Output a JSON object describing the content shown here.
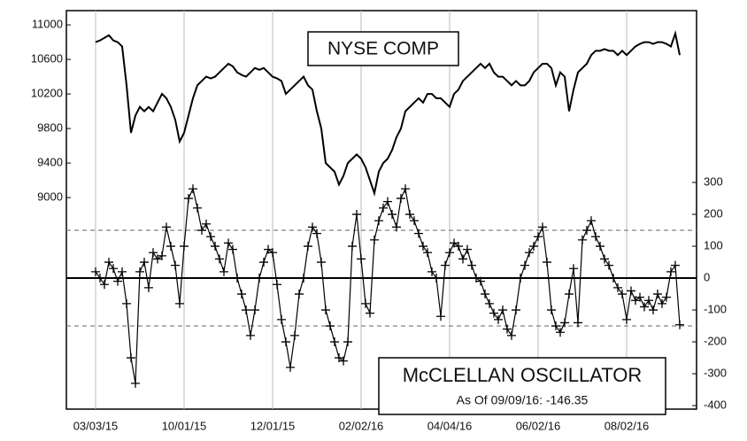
{
  "chart_data": [
    {
      "type": "line",
      "title": "NYSE COMP",
      "color": "#000000",
      "categories": [
        "03/03/15",
        null,
        null,
        null,
        null,
        null,
        null,
        null,
        null,
        null,
        null,
        null,
        null,
        null,
        null,
        null,
        null,
        null,
        null,
        null,
        "10/01/15",
        null,
        null,
        null,
        null,
        null,
        null,
        null,
        null,
        null,
        null,
        null,
        null,
        null,
        null,
        null,
        null,
        null,
        null,
        null,
        "12/01/15",
        null,
        null,
        null,
        null,
        null,
        null,
        null,
        null,
        null,
        null,
        null,
        null,
        null,
        null,
        null,
        null,
        null,
        null,
        null,
        "02/02/16",
        null,
        null,
        null,
        null,
        null,
        null,
        null,
        null,
        null,
        null,
        null,
        null,
        null,
        null,
        null,
        null,
        null,
        null,
        null,
        "04/04/16",
        null,
        null,
        null,
        null,
        null,
        null,
        null,
        null,
        null,
        null,
        null,
        null,
        null,
        null,
        null,
        null,
        null,
        null,
        null,
        "06/02/16",
        null,
        null,
        null,
        null,
        null,
        null,
        null,
        null,
        null,
        null,
        null,
        null,
        null,
        null,
        null,
        null,
        null,
        null,
        null,
        "08/02/16",
        null,
        null,
        null,
        null,
        null,
        null,
        null,
        null,
        null,
        null,
        null,
        null
      ],
      "values": [
        10800,
        10820,
        10850,
        10880,
        10820,
        10800,
        10750,
        10300,
        9750,
        9950,
        10050,
        10000,
        10050,
        10000,
        10100,
        10200,
        10150,
        10050,
        9900,
        9650,
        9750,
        9950,
        10150,
        10300,
        10350,
        10400,
        10380,
        10400,
        10450,
        10500,
        10550,
        10520,
        10450,
        10420,
        10400,
        10450,
        10500,
        10480,
        10500,
        10450,
        10400,
        10380,
        10350,
        10200,
        10250,
        10300,
        10350,
        10400,
        10300,
        10250,
        10000,
        9800,
        9400,
        9350,
        9300,
        9150,
        9250,
        9400,
        9450,
        9500,
        9450,
        9350,
        9200,
        9050,
        9300,
        9400,
        9450,
        9550,
        9700,
        9800,
        10000,
        10050,
        10100,
        10150,
        10100,
        10200,
        10200,
        10150,
        10150,
        10100,
        10050,
        10200,
        10250,
        10350,
        10400,
        10450,
        10500,
        10550,
        10500,
        10550,
        10450,
        10400,
        10400,
        10350,
        10300,
        10350,
        10300,
        10300,
        10350,
        10450,
        10500,
        10550,
        10550,
        10500,
        10300,
        10450,
        10400,
        10000,
        10250,
        10450,
        10500,
        10550,
        10650,
        10700,
        10700,
        10720,
        10700,
        10700,
        10650,
        10700,
        10650,
        10700,
        10750,
        10780,
        10800,
        10800,
        10780,
        10800,
        10800,
        10780,
        10750,
        10900,
        10650
      ],
      "ylim": [
        6550,
        11165
      ],
      "yticks": [
        9000,
        9400,
        9800,
        10200,
        10600,
        11000
      ],
      "grid": true
    },
    {
      "type": "line-markers",
      "title": "McCLELLAN OSCILLATOR",
      "subtitle": "As Of 09/09/16:  -146.35",
      "color": "#000000",
      "values": [
        20,
        0,
        -20,
        50,
        30,
        -10,
        20,
        -80,
        -250,
        -330,
        20,
        50,
        -30,
        80,
        60,
        70,
        160,
        100,
        40,
        -80,
        100,
        250,
        280,
        220,
        150,
        170,
        130,
        100,
        60,
        20,
        110,
        90,
        0,
        -50,
        -100,
        -180,
        -100,
        0,
        50,
        90,
        80,
        -20,
        -130,
        -200,
        -280,
        -180,
        -50,
        0,
        100,
        160,
        140,
        50,
        -100,
        -150,
        -200,
        -250,
        -260,
        -200,
        100,
        200,
        60,
        -80,
        -110,
        120,
        180,
        220,
        240,
        200,
        160,
        250,
        280,
        200,
        180,
        140,
        100,
        80,
        20,
        0,
        -120,
        40,
        80,
        110,
        100,
        60,
        90,
        40,
        0,
        -10,
        -50,
        -80,
        -110,
        -130,
        -100,
        -160,
        -180,
        -100,
        0,
        40,
        80,
        100,
        130,
        160,
        50,
        -100,
        -150,
        -170,
        -140,
        -50,
        30,
        -140,
        120,
        150,
        180,
        130,
        100,
        60,
        40,
        0,
        -30,
        -50,
        -130,
        -40,
        -70,
        -60,
        -90,
        -70,
        -100,
        -50,
        -80,
        -60,
        20,
        40,
        -146.35
      ],
      "ylim": [
        -411,
        839
      ],
      "yticks": [
        -400,
        -300,
        -200,
        -100,
        0,
        100,
        200,
        300
      ],
      "ref_lines": [
        {
          "value": 150,
          "dashed": true
        },
        {
          "value": 0,
          "dashed": false
        },
        {
          "value": -150,
          "dashed": true
        }
      ]
    }
  ]
}
